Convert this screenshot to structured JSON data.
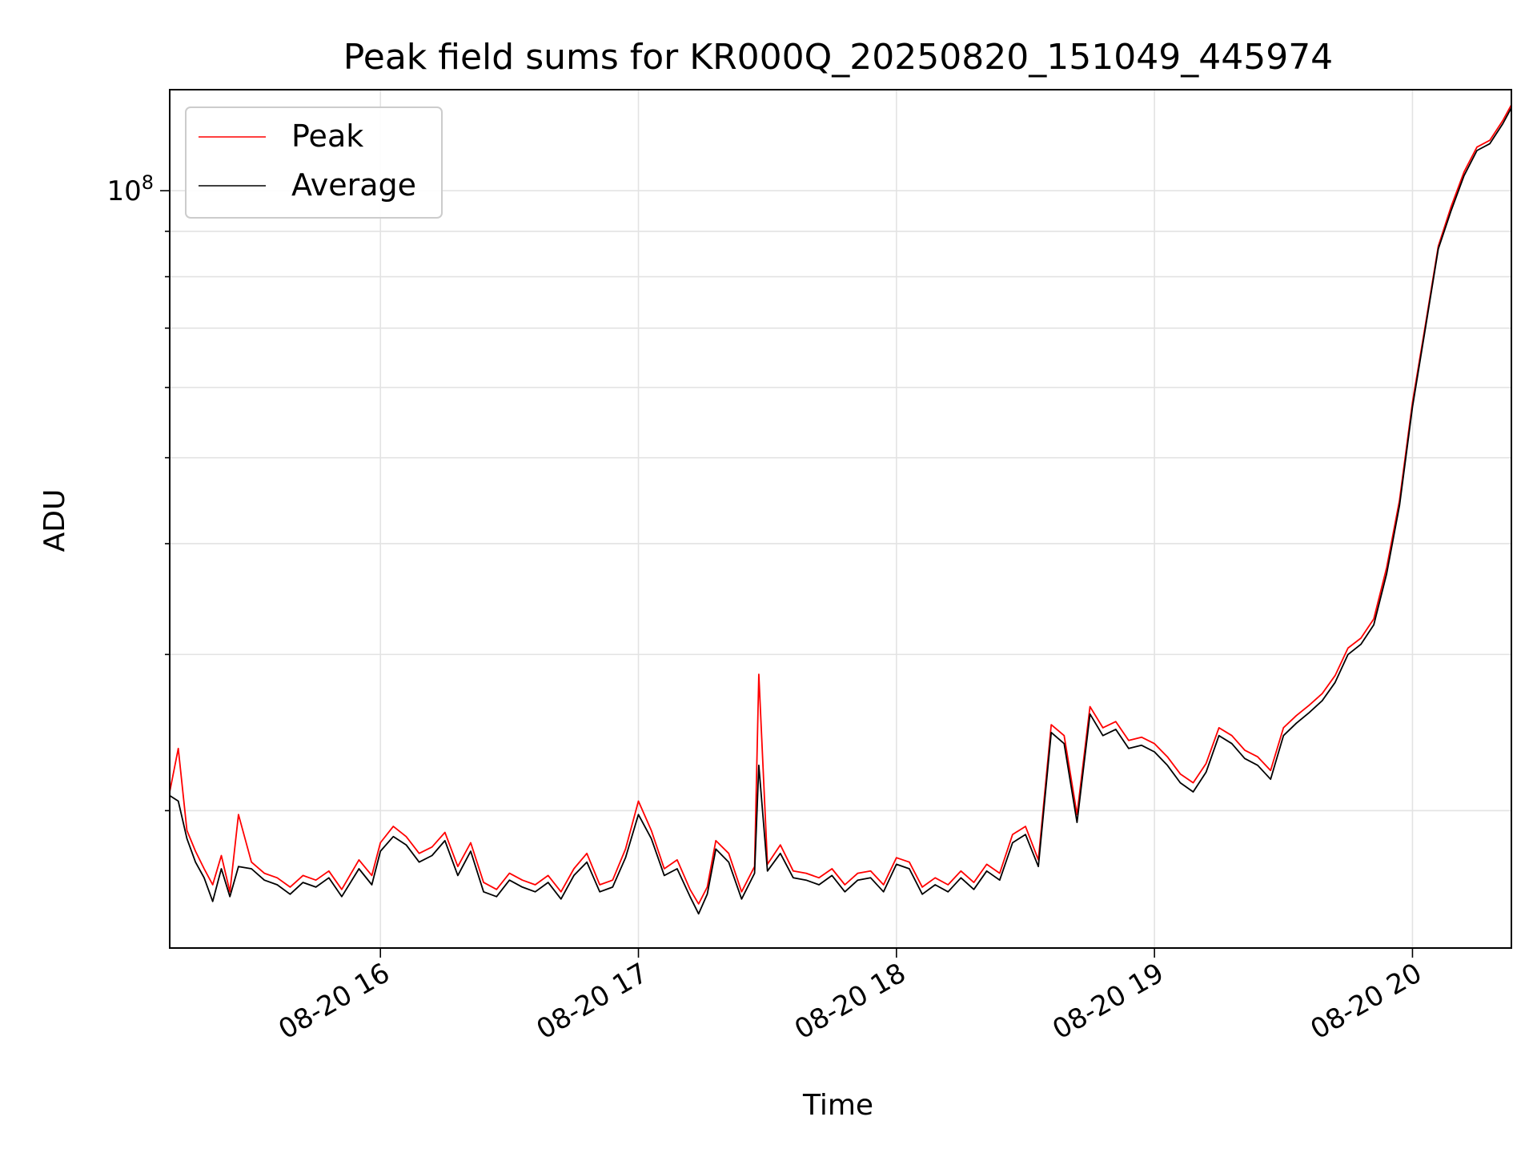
{
  "chart_data": {
    "type": "line",
    "title": "Peak field sums for KR000Q_20250820_151049_445974",
    "xlabel": "Time",
    "ylabel": "ADU",
    "y_scale": "log",
    "ylim": [
      14000000,
      130000000
    ],
    "xlim": [
      "2025-08-20 15:11",
      "2025-08-20 20:23"
    ],
    "x_ticks": [
      "08-20 16",
      "08-20 17",
      "08-20 18",
      "08-20 19",
      "08-20 20"
    ],
    "y_ticks": [
      "10^8"
    ],
    "grid": true,
    "legend": "upper-left",
    "colors": {
      "peak": "#ff0000",
      "average": "#000000",
      "grid": "#e3e3e3"
    },
    "series": [
      {
        "name": "Peak",
        "x": [
          "2025-08-20 15:11",
          "2025-08-20 15:13",
          "2025-08-20 15:15",
          "2025-08-20 15:17",
          "2025-08-20 15:19",
          "2025-08-20 15:21",
          "2025-08-20 15:23",
          "2025-08-20 15:25",
          "2025-08-20 15:27",
          "2025-08-20 15:30",
          "2025-08-20 15:33",
          "2025-08-20 15:36",
          "2025-08-20 15:39",
          "2025-08-20 15:42",
          "2025-08-20 15:45",
          "2025-08-20 15:48",
          "2025-08-20 15:51",
          "2025-08-20 15:55",
          "2025-08-20 15:58",
          "2025-08-20 16:00",
          "2025-08-20 16:03",
          "2025-08-20 16:06",
          "2025-08-20 16:09",
          "2025-08-20 16:12",
          "2025-08-20 16:15",
          "2025-08-20 16:18",
          "2025-08-20 16:21",
          "2025-08-20 16:24",
          "2025-08-20 16:27",
          "2025-08-20 16:30",
          "2025-08-20 16:33",
          "2025-08-20 16:36",
          "2025-08-20 16:39",
          "2025-08-20 16:42",
          "2025-08-20 16:45",
          "2025-08-20 16:48",
          "2025-08-20 16:51",
          "2025-08-20 16:54",
          "2025-08-20 16:57",
          "2025-08-20 17:00",
          "2025-08-20 17:03",
          "2025-08-20 17:06",
          "2025-08-20 17:09",
          "2025-08-20 17:12",
          "2025-08-20 17:14",
          "2025-08-20 17:16",
          "2025-08-20 17:18",
          "2025-08-20 17:21",
          "2025-08-20 17:24",
          "2025-08-20 17:27",
          "2025-08-20 17:28",
          "2025-08-20 17:30",
          "2025-08-20 17:33",
          "2025-08-20 17:36",
          "2025-08-20 17:39",
          "2025-08-20 17:42",
          "2025-08-20 17:45",
          "2025-08-20 17:48",
          "2025-08-20 17:51",
          "2025-08-20 17:54",
          "2025-08-20 17:57",
          "2025-08-20 18:00",
          "2025-08-20 18:03",
          "2025-08-20 18:06",
          "2025-08-20 18:09",
          "2025-08-20 18:12",
          "2025-08-20 18:15",
          "2025-08-20 18:18",
          "2025-08-20 18:21",
          "2025-08-20 18:24",
          "2025-08-20 18:27",
          "2025-08-20 18:30",
          "2025-08-20 18:33",
          "2025-08-20 18:36",
          "2025-08-20 18:39",
          "2025-08-20 18:42",
          "2025-08-20 18:45",
          "2025-08-20 18:48",
          "2025-08-20 18:51",
          "2025-08-20 18:54",
          "2025-08-20 18:57",
          "2025-08-20 19:00",
          "2025-08-20 19:03",
          "2025-08-20 19:06",
          "2025-08-20 19:09",
          "2025-08-20 19:12",
          "2025-08-20 19:15",
          "2025-08-20 19:18",
          "2025-08-20 19:21",
          "2025-08-20 19:24",
          "2025-08-20 19:27",
          "2025-08-20 19:30",
          "2025-08-20 19:33",
          "2025-08-20 19:36",
          "2025-08-20 19:39",
          "2025-08-20 19:42",
          "2025-08-20 19:45",
          "2025-08-20 19:48",
          "2025-08-20 19:51",
          "2025-08-20 19:54",
          "2025-08-20 19:57",
          "2025-08-20 20:00",
          "2025-08-20 20:03",
          "2025-08-20 20:06",
          "2025-08-20 20:09",
          "2025-08-20 20:12",
          "2025-08-20 20:15",
          "2025-08-20 20:18",
          "2025-08-20 20:21",
          "2025-08-20 20:23"
        ],
        "values": [
          21000000,
          23500000,
          19000000,
          18000000,
          17200000,
          16500000,
          17800000,
          16200000,
          19800000,
          17500000,
          17000000,
          16800000,
          16400000,
          16900000,
          16700000,
          17100000,
          16300000,
          17600000,
          16900000,
          18400000,
          19200000,
          18700000,
          17900000,
          18200000,
          18900000,
          17300000,
          18400000,
          16600000,
          16300000,
          17000000,
          16700000,
          16500000,
          16900000,
          16200000,
          17200000,
          17900000,
          16500000,
          16700000,
          18100000,
          20500000,
          19000000,
          17200000,
          17600000,
          16300000,
          15700000,
          16400000,
          18500000,
          17900000,
          16200000,
          17300000,
          28500000,
          17400000,
          18300000,
          17100000,
          17000000,
          16800000,
          17200000,
          16500000,
          17000000,
          17100000,
          16500000,
          17700000,
          17500000,
          16400000,
          16800000,
          16500000,
          17100000,
          16600000,
          17400000,
          17000000,
          18800000,
          19200000,
          17600000,
          25000000,
          24300000,
          19800000,
          26200000,
          24800000,
          25200000,
          24000000,
          24200000,
          23800000,
          23000000,
          22000000,
          21500000,
          22600000,
          24800000,
          24300000,
          23400000,
          23000000,
          22200000,
          24800000,
          25600000,
          26300000,
          27100000,
          28400000,
          30500000,
          31300000,
          32900000,
          37600000,
          44800000,
          57700000,
          70600000,
          86600000,
          96000000,
          105000000,
          112000000,
          114000000,
          120000000,
          125000000
        ]
      },
      {
        "name": "Average",
        "x": [
          "2025-08-20 15:11",
          "2025-08-20 15:13",
          "2025-08-20 15:15",
          "2025-08-20 15:17",
          "2025-08-20 15:19",
          "2025-08-20 15:21",
          "2025-08-20 15:23",
          "2025-08-20 15:25",
          "2025-08-20 15:27",
          "2025-08-20 15:30",
          "2025-08-20 15:33",
          "2025-08-20 15:36",
          "2025-08-20 15:39",
          "2025-08-20 15:42",
          "2025-08-20 15:45",
          "2025-08-20 15:48",
          "2025-08-20 15:51",
          "2025-08-20 15:55",
          "2025-08-20 15:58",
          "2025-08-20 16:00",
          "2025-08-20 16:03",
          "2025-08-20 16:06",
          "2025-08-20 16:09",
          "2025-08-20 16:12",
          "2025-08-20 16:15",
          "2025-08-20 16:18",
          "2025-08-20 16:21",
          "2025-08-20 16:24",
          "2025-08-20 16:27",
          "2025-08-20 16:30",
          "2025-08-20 16:33",
          "2025-08-20 16:36",
          "2025-08-20 16:39",
          "2025-08-20 16:42",
          "2025-08-20 16:45",
          "2025-08-20 16:48",
          "2025-08-20 16:51",
          "2025-08-20 16:54",
          "2025-08-20 16:57",
          "2025-08-20 17:00",
          "2025-08-20 17:03",
          "2025-08-20 17:06",
          "2025-08-20 17:09",
          "2025-08-20 17:12",
          "2025-08-20 17:14",
          "2025-08-20 17:16",
          "2025-08-20 17:18",
          "2025-08-20 17:21",
          "2025-08-20 17:24",
          "2025-08-20 17:27",
          "2025-08-20 17:28",
          "2025-08-20 17:30",
          "2025-08-20 17:33",
          "2025-08-20 17:36",
          "2025-08-20 17:39",
          "2025-08-20 17:42",
          "2025-08-20 17:45",
          "2025-08-20 17:48",
          "2025-08-20 17:51",
          "2025-08-20 17:54",
          "2025-08-20 17:57",
          "2025-08-20 18:00",
          "2025-08-20 18:03",
          "2025-08-20 18:06",
          "2025-08-20 18:09",
          "2025-08-20 18:12",
          "2025-08-20 18:15",
          "2025-08-20 18:18",
          "2025-08-20 18:21",
          "2025-08-20 18:24",
          "2025-08-20 18:27",
          "2025-08-20 18:30",
          "2025-08-20 18:33",
          "2025-08-20 18:36",
          "2025-08-20 18:39",
          "2025-08-20 18:42",
          "2025-08-20 18:45",
          "2025-08-20 18:48",
          "2025-08-20 18:51",
          "2025-08-20 18:54",
          "2025-08-20 18:57",
          "2025-08-20 19:00",
          "2025-08-20 19:03",
          "2025-08-20 19:06",
          "2025-08-20 19:09",
          "2025-08-20 19:12",
          "2025-08-20 19:15",
          "2025-08-20 19:18",
          "2025-08-20 19:21",
          "2025-08-20 19:24",
          "2025-08-20 19:27",
          "2025-08-20 19:30",
          "2025-08-20 19:33",
          "2025-08-20 19:36",
          "2025-08-20 19:39",
          "2025-08-20 19:42",
          "2025-08-20 19:45",
          "2025-08-20 19:48",
          "2025-08-20 19:51",
          "2025-08-20 19:54",
          "2025-08-20 19:57",
          "2025-08-20 20:00",
          "2025-08-20 20:03",
          "2025-08-20 20:06",
          "2025-08-20 20:09",
          "2025-08-20 20:12",
          "2025-08-20 20:15",
          "2025-08-20 20:18",
          "2025-08-20 20:21",
          "2025-08-20 20:23"
        ],
        "values": [
          20800000,
          20500000,
          18600000,
          17500000,
          16800000,
          15800000,
          17200000,
          16000000,
          17300000,
          17200000,
          16700000,
          16500000,
          16100000,
          16600000,
          16400000,
          16800000,
          16000000,
          17200000,
          16500000,
          18000000,
          18700000,
          18300000,
          17500000,
          17800000,
          18500000,
          16900000,
          18000000,
          16200000,
          16000000,
          16700000,
          16400000,
          16200000,
          16600000,
          15900000,
          16900000,
          17500000,
          16200000,
          16400000,
          17700000,
          19800000,
          18600000,
          16900000,
          17200000,
          16000000,
          15300000,
          16100000,
          18100000,
          17500000,
          15900000,
          17000000,
          22500000,
          17100000,
          17900000,
          16800000,
          16700000,
          16500000,
          16900000,
          16200000,
          16700000,
          16800000,
          16200000,
          17400000,
          17200000,
          16100000,
          16500000,
          16200000,
          16800000,
          16300000,
          17100000,
          16700000,
          18400000,
          18800000,
          17300000,
          24500000,
          23800000,
          19400000,
          25700000,
          24300000,
          24700000,
          23500000,
          23700000,
          23300000,
          22500000,
          21500000,
          21000000,
          22100000,
          24300000,
          23800000,
          22900000,
          22500000,
          21700000,
          24300000,
          25100000,
          25800000,
          26600000,
          27900000,
          30000000,
          30800000,
          32400000,
          37000000,
          44200000,
          57000000,
          70000000,
          86000000,
          95000000,
          104000000,
          111000000,
          113000000,
          119000000,
          124000000
        ]
      }
    ]
  }
}
